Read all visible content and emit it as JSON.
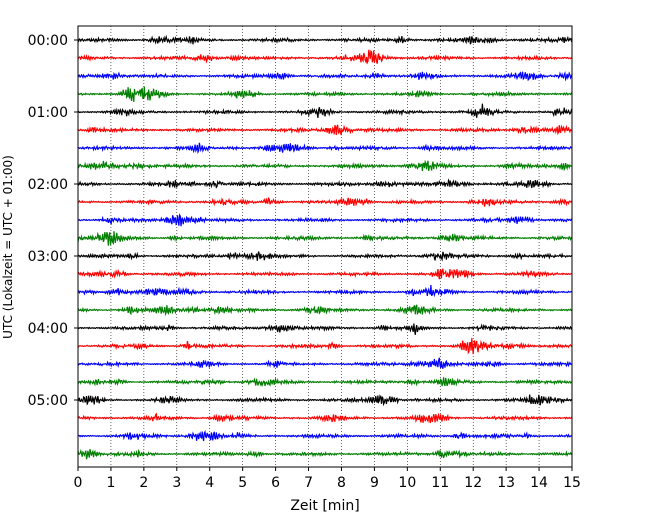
{
  "chart_data": {
    "type": "line",
    "title": "",
    "xlabel": "Zeit  [min]",
    "ylabel": "UTC (Lokalzeit = UTC + 01:00)",
    "xlim": [
      0,
      15
    ],
    "x_ticks": [
      0,
      1,
      2,
      3,
      4,
      5,
      6,
      7,
      8,
      9,
      10,
      11,
      12,
      13,
      14,
      15
    ],
    "y_tick_labels": [
      "00:00",
      "01:00",
      "02:00",
      "03:00",
      "04:00",
      "05:00"
    ],
    "traces_per_hour": 4,
    "trace_count": 24,
    "trace_colors": [
      "#000000",
      "#ff0000",
      "#0000ff",
      "#007f00"
    ],
    "grid": "vertical dotted at each minute",
    "legend": "none"
  }
}
